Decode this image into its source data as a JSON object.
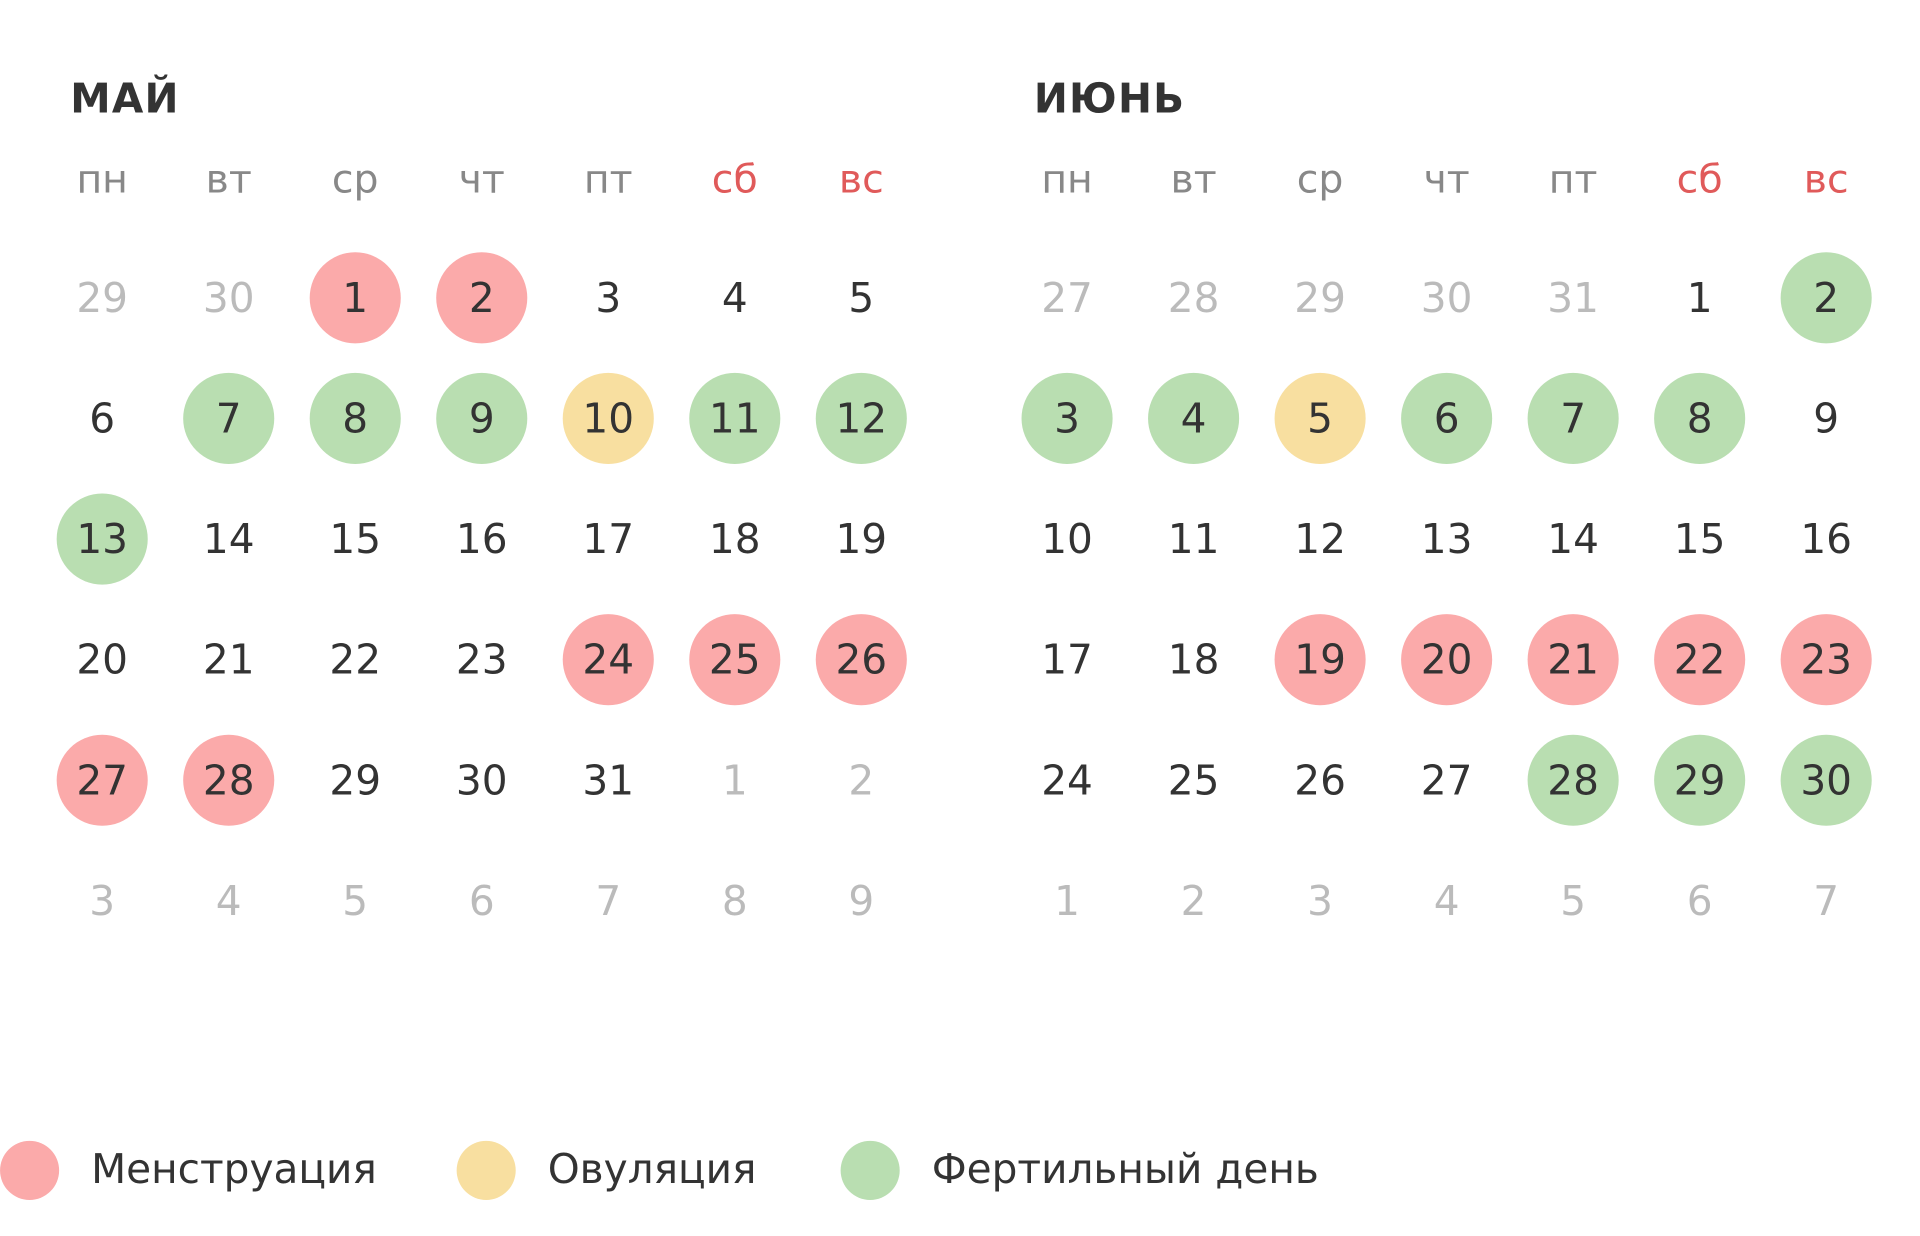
{
  "months": [
    {
      "title": "МАЙ",
      "weekdays": [
        {
          "label": "пн",
          "weekend": false
        },
        {
          "label": "вт",
          "weekend": false
        },
        {
          "label": "ср",
          "weekend": false
        },
        {
          "label": "чт",
          "weekend": false
        },
        {
          "label": "пт",
          "weekend": false
        },
        {
          "label": "сб",
          "weekend": true
        },
        {
          "label": "вс",
          "weekend": true
        }
      ],
      "weeks": [
        [
          {
            "d": "29",
            "s": "other"
          },
          {
            "d": "30",
            "s": "other"
          },
          {
            "d": "1",
            "s": "menstruation"
          },
          {
            "d": "2",
            "s": "menstruation"
          },
          {
            "d": "3",
            "s": "normal"
          },
          {
            "d": "4",
            "s": "normal"
          },
          {
            "d": "5",
            "s": "normal"
          }
        ],
        [
          {
            "d": "6",
            "s": "normal"
          },
          {
            "d": "7",
            "s": "fertile"
          },
          {
            "d": "8",
            "s": "fertile"
          },
          {
            "d": "9",
            "s": "fertile"
          },
          {
            "d": "10",
            "s": "ovulation"
          },
          {
            "d": "11",
            "s": "fertile"
          },
          {
            "d": "12",
            "s": "fertile"
          }
        ],
        [
          {
            "d": "13",
            "s": "fertile"
          },
          {
            "d": "14",
            "s": "normal"
          },
          {
            "d": "15",
            "s": "normal"
          },
          {
            "d": "16",
            "s": "normal"
          },
          {
            "d": "17",
            "s": "normal"
          },
          {
            "d": "18",
            "s": "normal"
          },
          {
            "d": "19",
            "s": "normal"
          }
        ],
        [
          {
            "d": "20",
            "s": "normal"
          },
          {
            "d": "21",
            "s": "normal"
          },
          {
            "d": "22",
            "s": "normal"
          },
          {
            "d": "23",
            "s": "normal"
          },
          {
            "d": "24",
            "s": "menstruation"
          },
          {
            "d": "25",
            "s": "menstruation"
          },
          {
            "d": "26",
            "s": "menstruation"
          }
        ],
        [
          {
            "d": "27",
            "s": "menstruation"
          },
          {
            "d": "28",
            "s": "menstruation"
          },
          {
            "d": "29",
            "s": "normal"
          },
          {
            "d": "30",
            "s": "normal"
          },
          {
            "d": "31",
            "s": "normal"
          },
          {
            "d": "1",
            "s": "other"
          },
          {
            "d": "2",
            "s": "other"
          }
        ],
        [
          {
            "d": "3",
            "s": "other"
          },
          {
            "d": "4",
            "s": "other"
          },
          {
            "d": "5",
            "s": "other"
          },
          {
            "d": "6",
            "s": "other"
          },
          {
            "d": "7",
            "s": "other"
          },
          {
            "d": "8",
            "s": "other"
          },
          {
            "d": "9",
            "s": "other"
          }
        ]
      ]
    },
    {
      "title": "ИЮНЬ",
      "weekdays": [
        {
          "label": "пн",
          "weekend": false
        },
        {
          "label": "вт",
          "weekend": false
        },
        {
          "label": "ср",
          "weekend": false
        },
        {
          "label": "чт",
          "weekend": false
        },
        {
          "label": "пт",
          "weekend": false
        },
        {
          "label": "сб",
          "weekend": true
        },
        {
          "label": "вс",
          "weekend": true
        }
      ],
      "weeks": [
        [
          {
            "d": "27",
            "s": "other"
          },
          {
            "d": "28",
            "s": "other"
          },
          {
            "d": "29",
            "s": "other"
          },
          {
            "d": "30",
            "s": "other"
          },
          {
            "d": "31",
            "s": "other"
          },
          {
            "d": "1",
            "s": "normal"
          },
          {
            "d": "2",
            "s": "fertile"
          }
        ],
        [
          {
            "d": "3",
            "s": "fertile"
          },
          {
            "d": "4",
            "s": "fertile"
          },
          {
            "d": "5",
            "s": "ovulation"
          },
          {
            "d": "6",
            "s": "fertile"
          },
          {
            "d": "7",
            "s": "fertile"
          },
          {
            "d": "8",
            "s": "fertile"
          },
          {
            "d": "9",
            "s": "normal"
          }
        ],
        [
          {
            "d": "10",
            "s": "normal"
          },
          {
            "d": "11",
            "s": "normal"
          },
          {
            "d": "12",
            "s": "normal"
          },
          {
            "d": "13",
            "s": "normal"
          },
          {
            "d": "14",
            "s": "normal"
          },
          {
            "d": "15",
            "s": "normal"
          },
          {
            "d": "16",
            "s": "normal"
          }
        ],
        [
          {
            "d": "17",
            "s": "normal"
          },
          {
            "d": "18",
            "s": "normal"
          },
          {
            "d": "19",
            "s": "menstruation"
          },
          {
            "d": "20",
            "s": "menstruation"
          },
          {
            "d": "21",
            "s": "menstruation"
          },
          {
            "d": "22",
            "s": "menstruation"
          },
          {
            "d": "23",
            "s": "menstruation"
          }
        ],
        [
          {
            "d": "24",
            "s": "normal"
          },
          {
            "d": "25",
            "s": "normal"
          },
          {
            "d": "26",
            "s": "normal"
          },
          {
            "d": "27",
            "s": "normal"
          },
          {
            "d": "28",
            "s": "fertile"
          },
          {
            "d": "29",
            "s": "fertile"
          },
          {
            "d": "30",
            "s": "fertile"
          }
        ],
        [
          {
            "d": "1",
            "s": "other"
          },
          {
            "d": "2",
            "s": "other"
          },
          {
            "d": "3",
            "s": "other"
          },
          {
            "d": "4",
            "s": "other"
          },
          {
            "d": "5",
            "s": "other"
          },
          {
            "d": "6",
            "s": "other"
          },
          {
            "d": "7",
            "s": "other"
          }
        ]
      ]
    }
  ],
  "legend": [
    {
      "key": "menstruation",
      "label": "Менструация",
      "color": "#fbaaaa"
    },
    {
      "key": "ovulation",
      "label": "Овуляция",
      "color": "#f8dfa0"
    },
    {
      "key": "fertile",
      "label": "Фертильный день",
      "color": "#b9deb1"
    }
  ]
}
